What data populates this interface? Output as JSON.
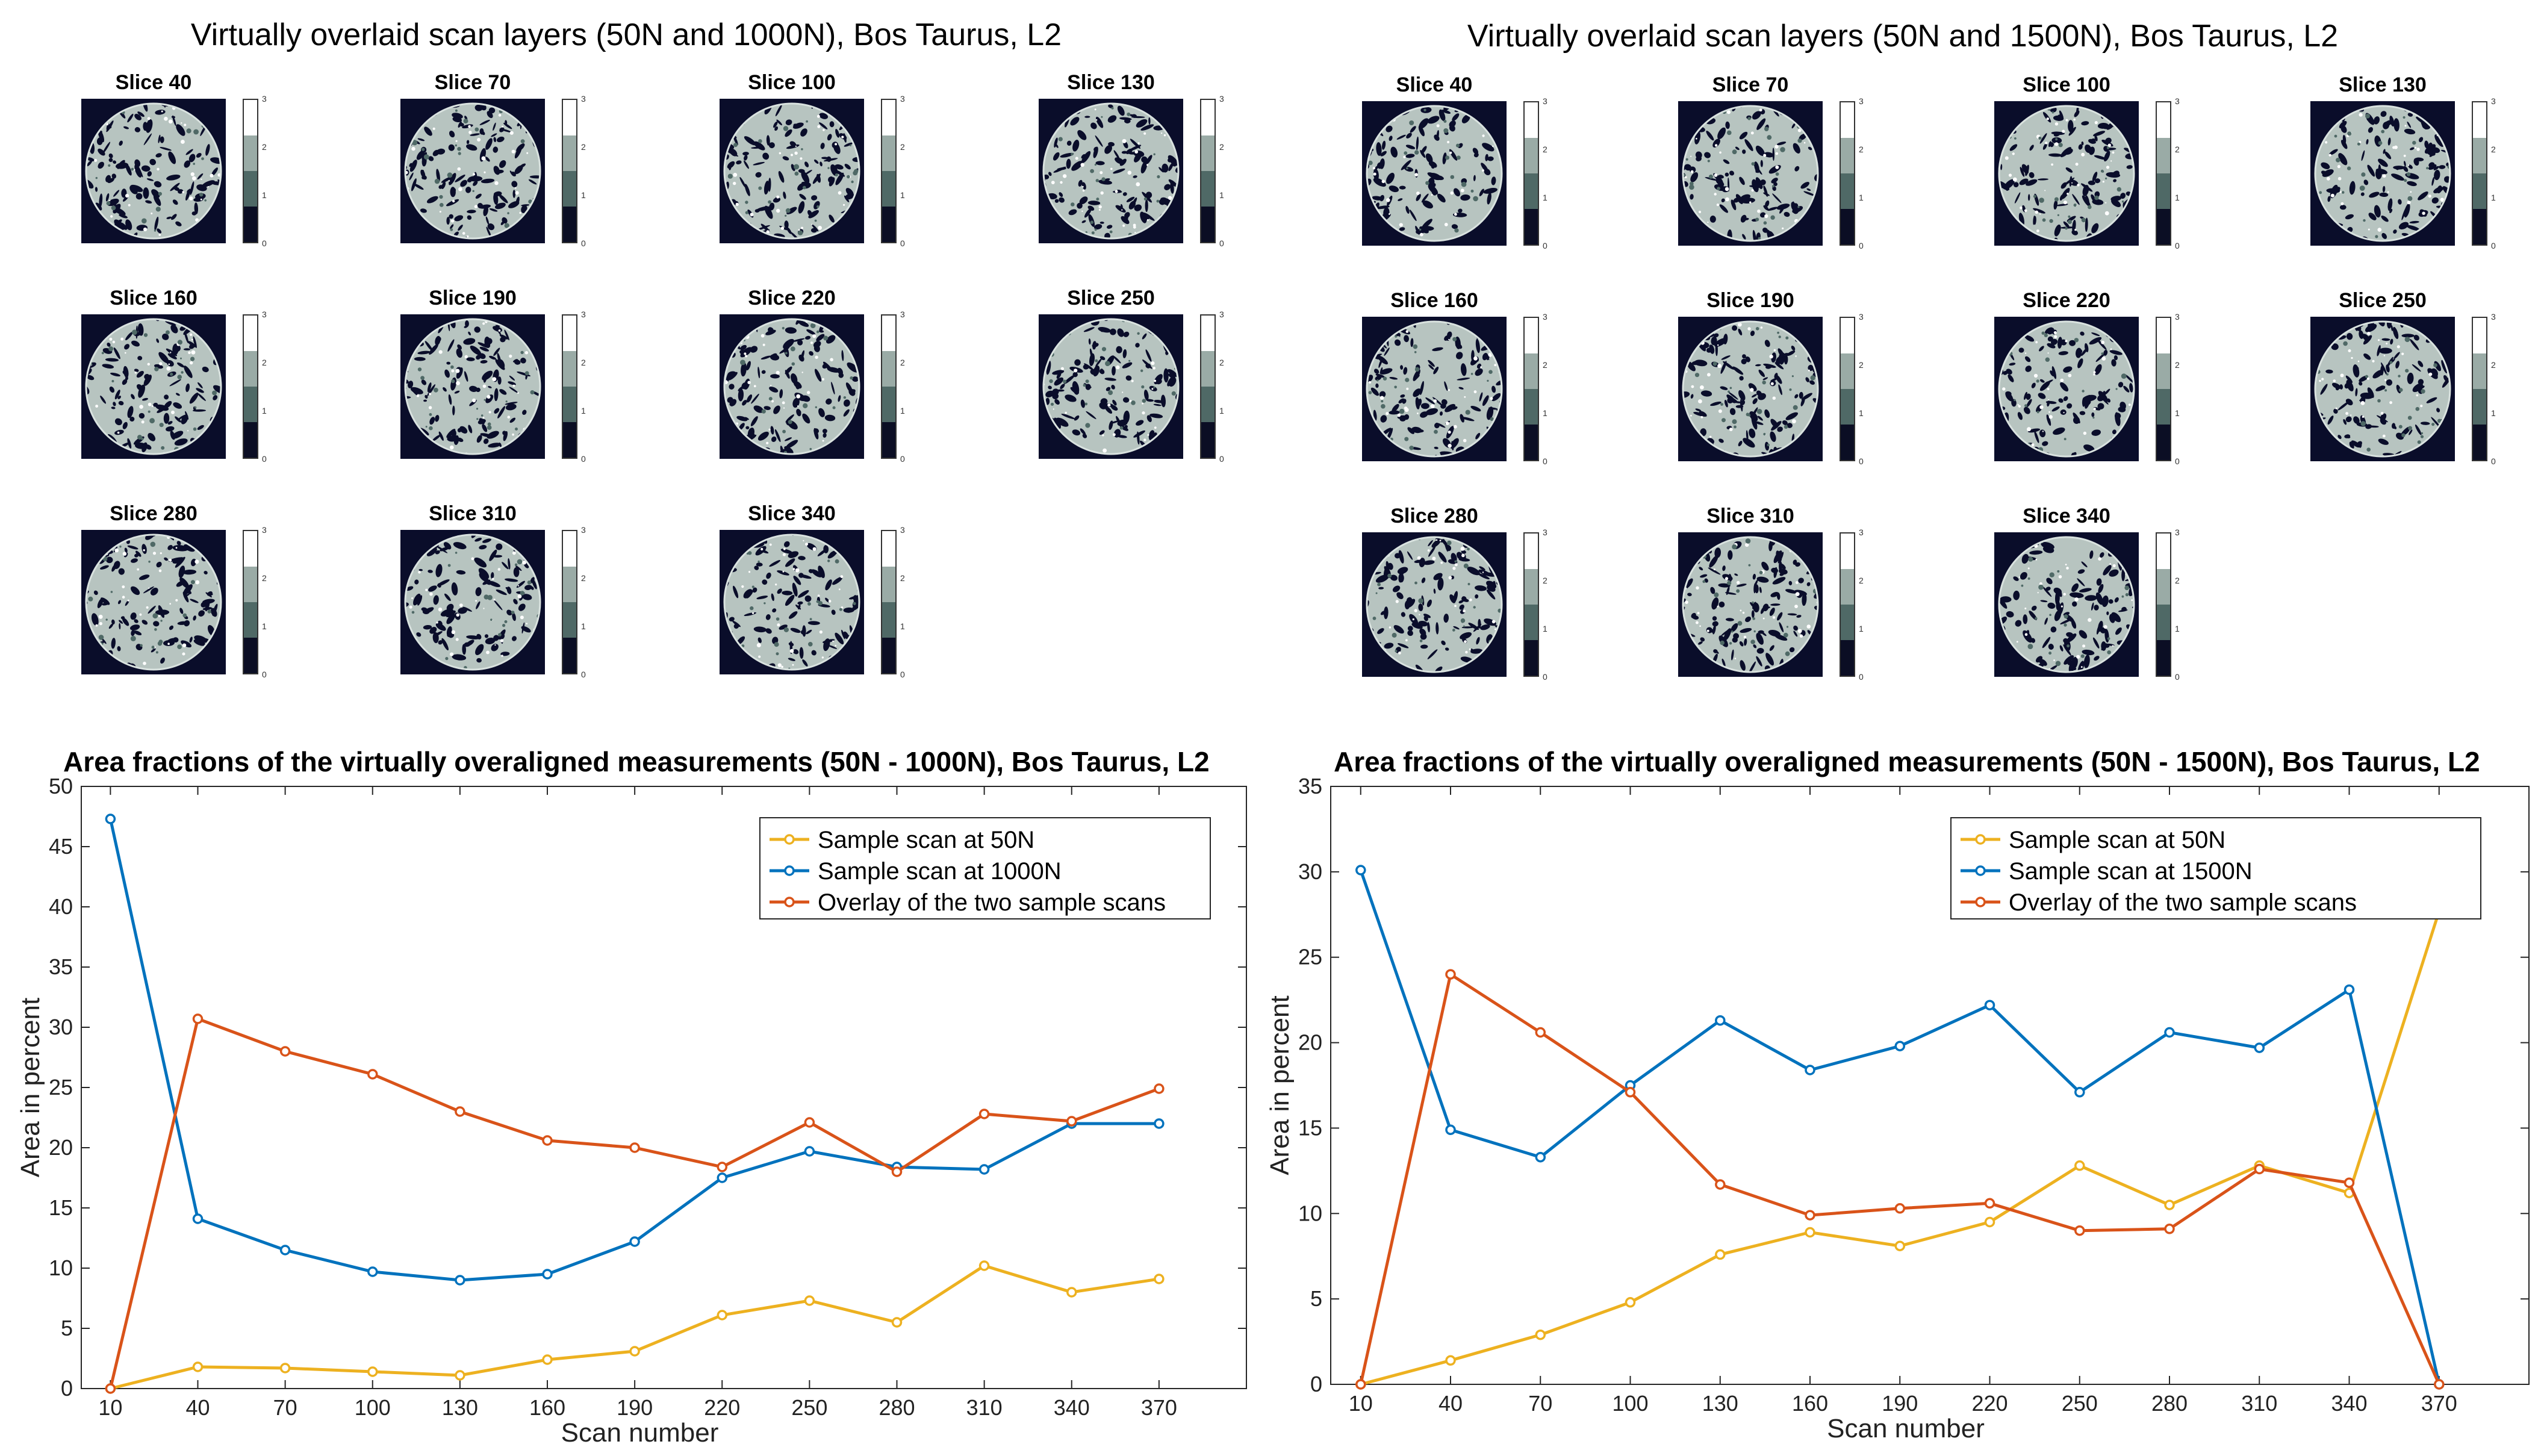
{
  "colors": {
    "yellow": "#EDB120",
    "blue": "#0072BD",
    "orange": "#D95319",
    "slice_bg": "#0a0d2a",
    "cbar": [
      "#ffffff",
      "#9aaba6",
      "#4f6966",
      "#0b0e24"
    ]
  },
  "panels": [
    {
      "title": "Virtually overlaid scan layers (50N and 1000N), Bos Taurus, L2",
      "slices": [
        "Slice 40",
        "Slice 70",
        "Slice 100",
        "Slice 130",
        "Slice 160",
        "Slice 190",
        "Slice 220",
        "Slice 250",
        "Slice 280",
        "Slice 310",
        "Slice 340"
      ],
      "colorbar_ticks": [
        "3",
        "2",
        "1",
        "0"
      ]
    },
    {
      "title": "Virtually overlaid scan layers (50N and 1500N), Bos Taurus, L2",
      "slices": [
        "Slice 40",
        "Slice 70",
        "Slice 100",
        "Slice 130",
        "Slice 160",
        "Slice 190",
        "Slice 220",
        "Slice 250",
        "Slice 280",
        "Slice 310",
        "Slice 340"
      ],
      "colorbar_ticks": [
        "3",
        "2",
        "1",
        "0"
      ]
    }
  ],
  "chart_data": [
    {
      "type": "line",
      "title": "Area fractions of the virtually overaligned measurements (50N - 1000N), Bos Taurus, L2",
      "xlabel": "Scan number",
      "ylabel": "Area in percent",
      "x": [
        10,
        40,
        70,
        100,
        130,
        160,
        190,
        220,
        250,
        280,
        310,
        340,
        370
      ],
      "xticks": [
        "10",
        "40",
        "70",
        "100",
        "130",
        "160",
        "190",
        "220",
        "250",
        "280",
        "310",
        "340",
        "370"
      ],
      "xlim": [
        0,
        400
      ],
      "ylim": [
        0,
        50
      ],
      "yticks": [
        "0",
        "5",
        "10",
        "15",
        "20",
        "25",
        "30",
        "35",
        "40",
        "45",
        "50"
      ],
      "legend_position": "top-right",
      "series": [
        {
          "name": "Sample scan at 50N",
          "color_key": "yellow",
          "values": [
            0,
            1.8,
            1.7,
            1.4,
            1.1,
            2.4,
            3.1,
            6.1,
            7.3,
            5.5,
            10.2,
            8.0,
            9.1
          ]
        },
        {
          "name": "Sample scan at 1000N",
          "color_key": "blue",
          "values": [
            47.3,
            14.1,
            11.5,
            9.7,
            9.0,
            9.5,
            12.2,
            17.5,
            19.7,
            18.4,
            18.2,
            22.0,
            22.0
          ]
        },
        {
          "name": "Overlay of the two sample scans",
          "color_key": "orange",
          "values": [
            0,
            30.7,
            28.0,
            26.1,
            23.0,
            20.6,
            20.0,
            18.4,
            22.1,
            18.0,
            22.8,
            22.2,
            24.9
          ]
        }
      ]
    },
    {
      "type": "line",
      "title": "Area fractions of the virtually overaligned measurements (50N - 1500N), Bos Taurus, L2",
      "xlabel": "Scan number",
      "ylabel": "Area in percent",
      "x": [
        10,
        40,
        70,
        100,
        130,
        160,
        190,
        220,
        250,
        280,
        310,
        340,
        370
      ],
      "xticks": [
        "10",
        "40",
        "70",
        "100",
        "130",
        "160",
        "190",
        "220",
        "250",
        "280",
        "310",
        "340",
        "370"
      ],
      "xlim": [
        0,
        400
      ],
      "ylim": [
        0,
        35
      ],
      "yticks": [
        "0",
        "5",
        "10",
        "15",
        "20",
        "25",
        "30",
        "35"
      ],
      "legend_position": "top-right",
      "series": [
        {
          "name": "Sample scan at 50N",
          "color_key": "yellow",
          "values": [
            0,
            1.4,
            2.9,
            4.8,
            7.6,
            8.9,
            8.1,
            9.5,
            12.8,
            10.5,
            12.8,
            11.2,
            27.7
          ]
        },
        {
          "name": "Sample scan at 1500N",
          "color_key": "blue",
          "values": [
            30.1,
            14.9,
            13.3,
            17.5,
            21.3,
            18.4,
            19.8,
            22.2,
            17.1,
            20.6,
            19.7,
            23.1,
            0
          ]
        },
        {
          "name": "Overlay of the two sample scans",
          "color_key": "orange",
          "values": [
            0,
            24.0,
            20.6,
            17.1,
            11.7,
            9.9,
            10.3,
            10.6,
            9.0,
            9.1,
            12.6,
            11.8,
            0
          ]
        }
      ]
    }
  ]
}
